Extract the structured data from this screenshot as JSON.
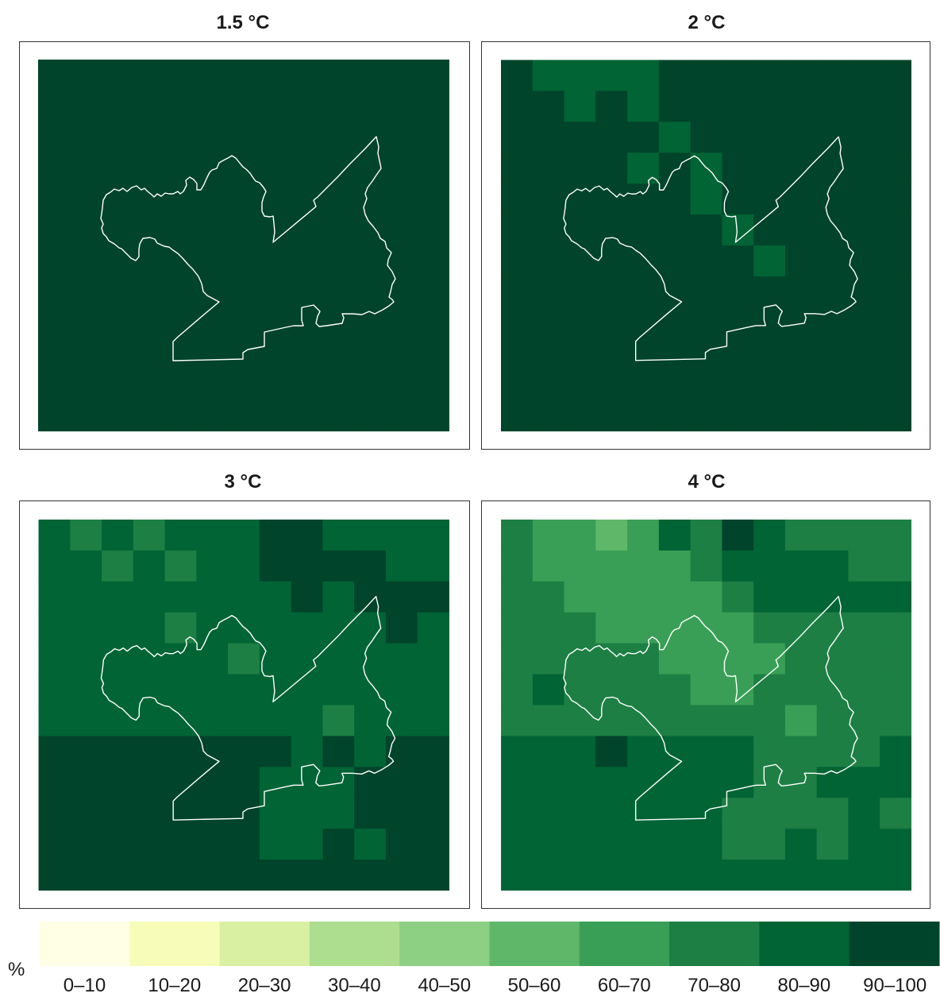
{
  "panels": [
    {
      "title": "1.5 °C",
      "grid": [
        [
          9,
          9,
          9,
          9,
          9,
          9,
          9,
          9,
          9,
          9,
          9,
          9,
          9
        ],
        [
          9,
          9,
          9,
          9,
          9,
          9,
          9,
          9,
          9,
          9,
          9,
          9,
          9
        ],
        [
          9,
          9,
          9,
          9,
          9,
          9,
          9,
          9,
          9,
          9,
          9,
          9,
          9
        ],
        [
          9,
          9,
          9,
          9,
          9,
          9,
          9,
          9,
          9,
          9,
          9,
          9,
          9
        ],
        [
          9,
          9,
          9,
          9,
          9,
          9,
          9,
          9,
          9,
          9,
          9,
          9,
          9
        ],
        [
          9,
          9,
          9,
          9,
          9,
          9,
          9,
          9,
          9,
          9,
          9,
          9,
          9
        ],
        [
          9,
          9,
          9,
          9,
          9,
          9,
          9,
          9,
          9,
          9,
          9,
          9,
          9
        ],
        [
          9,
          9,
          9,
          9,
          9,
          9,
          9,
          9,
          9,
          9,
          9,
          9,
          9
        ],
        [
          9,
          9,
          9,
          9,
          9,
          9,
          9,
          9,
          9,
          9,
          9,
          9,
          9
        ],
        [
          9,
          9,
          9,
          9,
          9,
          9,
          9,
          9,
          9,
          9,
          9,
          9,
          9
        ],
        [
          9,
          9,
          9,
          9,
          9,
          9,
          9,
          9,
          9,
          9,
          9,
          9,
          9
        ],
        [
          9,
          9,
          9,
          9,
          9,
          9,
          9,
          9,
          9,
          9,
          9,
          9,
          9
        ]
      ]
    },
    {
      "title": "2 °C",
      "grid": [
        [
          9,
          8,
          8,
          8,
          8,
          9,
          9,
          9,
          9,
          9,
          9,
          9,
          9
        ],
        [
          9,
          9,
          8,
          9,
          8,
          9,
          9,
          9,
          9,
          9,
          9,
          9,
          9
        ],
        [
          9,
          9,
          9,
          9,
          9,
          8,
          9,
          9,
          9,
          9,
          9,
          9,
          9
        ],
        [
          9,
          9,
          9,
          9,
          8,
          9,
          8,
          9,
          9,
          9,
          9,
          9,
          9
        ],
        [
          9,
          9,
          9,
          9,
          9,
          9,
          8,
          9,
          9,
          9,
          9,
          9,
          9
        ],
        [
          9,
          9,
          9,
          9,
          9,
          9,
          9,
          8,
          9,
          9,
          9,
          9,
          9
        ],
        [
          9,
          9,
          9,
          9,
          9,
          9,
          9,
          9,
          8,
          9,
          9,
          9,
          9
        ],
        [
          9,
          9,
          9,
          9,
          9,
          9,
          9,
          9,
          9,
          9,
          9,
          9,
          9
        ],
        [
          9,
          9,
          9,
          9,
          9,
          9,
          9,
          9,
          9,
          9,
          9,
          9,
          9
        ],
        [
          9,
          9,
          9,
          9,
          9,
          9,
          9,
          9,
          9,
          9,
          9,
          9,
          9
        ],
        [
          9,
          9,
          9,
          9,
          9,
          9,
          9,
          9,
          9,
          9,
          9,
          9,
          9
        ],
        [
          9,
          9,
          9,
          9,
          9,
          9,
          9,
          9,
          9,
          9,
          9,
          9,
          9
        ]
      ]
    },
    {
      "title": "3 °C",
      "grid": [
        [
          8,
          7,
          8,
          7,
          8,
          8,
          8,
          9,
          9,
          8,
          8,
          8,
          8
        ],
        [
          8,
          8,
          7,
          8,
          7,
          8,
          8,
          9,
          9,
          9,
          9,
          8,
          8
        ],
        [
          8,
          8,
          8,
          8,
          8,
          8,
          8,
          8,
          9,
          8,
          9,
          9,
          9
        ],
        [
          8,
          8,
          8,
          8,
          7,
          8,
          8,
          8,
          8,
          8,
          8,
          9,
          8
        ],
        [
          8,
          8,
          8,
          8,
          8,
          8,
          7,
          8,
          8,
          8,
          8,
          8,
          8
        ],
        [
          8,
          8,
          8,
          8,
          8,
          8,
          8,
          8,
          8,
          8,
          8,
          8,
          8
        ],
        [
          8,
          8,
          8,
          8,
          8,
          8,
          8,
          8,
          8,
          7,
          8,
          8,
          8
        ],
        [
          9,
          9,
          9,
          9,
          9,
          9,
          9,
          9,
          8,
          9,
          8,
          9,
          9
        ],
        [
          9,
          9,
          9,
          9,
          9,
          9,
          9,
          8,
          8,
          8,
          9,
          9,
          9
        ],
        [
          9,
          9,
          9,
          9,
          9,
          9,
          9,
          8,
          8,
          8,
          9,
          9,
          9
        ],
        [
          9,
          9,
          9,
          9,
          9,
          9,
          9,
          8,
          8,
          9,
          8,
          9,
          9
        ],
        [
          9,
          9,
          9,
          9,
          9,
          9,
          9,
          9,
          9,
          9,
          9,
          9,
          9
        ]
      ]
    },
    {
      "title": "4 °C",
      "grid": [
        [
          7,
          6,
          6,
          5,
          6,
          8,
          7,
          9,
          8,
          7,
          7,
          7,
          7
        ],
        [
          7,
          6,
          6,
          6,
          6,
          6,
          7,
          8,
          8,
          8,
          8,
          7,
          7
        ],
        [
          7,
          7,
          6,
          6,
          6,
          6,
          6,
          7,
          8,
          8,
          8,
          8,
          8
        ],
        [
          7,
          7,
          7,
          6,
          6,
          6,
          6,
          6,
          7,
          7,
          7,
          7,
          7
        ],
        [
          7,
          7,
          7,
          7,
          7,
          6,
          6,
          6,
          6,
          7,
          7,
          7,
          7
        ],
        [
          7,
          8,
          7,
          7,
          7,
          7,
          6,
          6,
          7,
          7,
          7,
          7,
          7
        ],
        [
          7,
          7,
          7,
          7,
          7,
          7,
          7,
          7,
          7,
          6,
          7,
          7,
          7
        ],
        [
          8,
          8,
          8,
          9,
          8,
          8,
          8,
          8,
          7,
          7,
          7,
          7,
          8
        ],
        [
          8,
          8,
          8,
          8,
          8,
          8,
          8,
          8,
          7,
          7,
          8,
          8,
          8
        ],
        [
          8,
          8,
          8,
          8,
          8,
          8,
          8,
          7,
          7,
          7,
          7,
          8,
          7
        ],
        [
          8,
          8,
          8,
          8,
          8,
          8,
          8,
          7,
          7,
          8,
          7,
          8,
          8
        ],
        [
          8,
          8,
          8,
          8,
          8,
          8,
          8,
          8,
          8,
          8,
          8,
          8,
          8
        ]
      ]
    }
  ],
  "legend": {
    "unit": "%",
    "classes": [
      {
        "label": "0–10",
        "color": "#ffffe5"
      },
      {
        "label": "10–20",
        "color": "#f7fcb9"
      },
      {
        "label": "20–30",
        "color": "#d9f0a3"
      },
      {
        "label": "30–40",
        "color": "#addd8e"
      },
      {
        "label": "40–50",
        "color": "#8ed083"
      },
      {
        "label": "50–60",
        "color": "#5fb869"
      },
      {
        "label": "60–70",
        "color": "#3a9f56"
      },
      {
        "label": "70–80",
        "color": "#1d7f44"
      },
      {
        "label": "80–90",
        "color": "#006435"
      },
      {
        "label": "90–100",
        "color": "#00442b"
      }
    ]
  },
  "boundary_color": "#ffffff"
}
